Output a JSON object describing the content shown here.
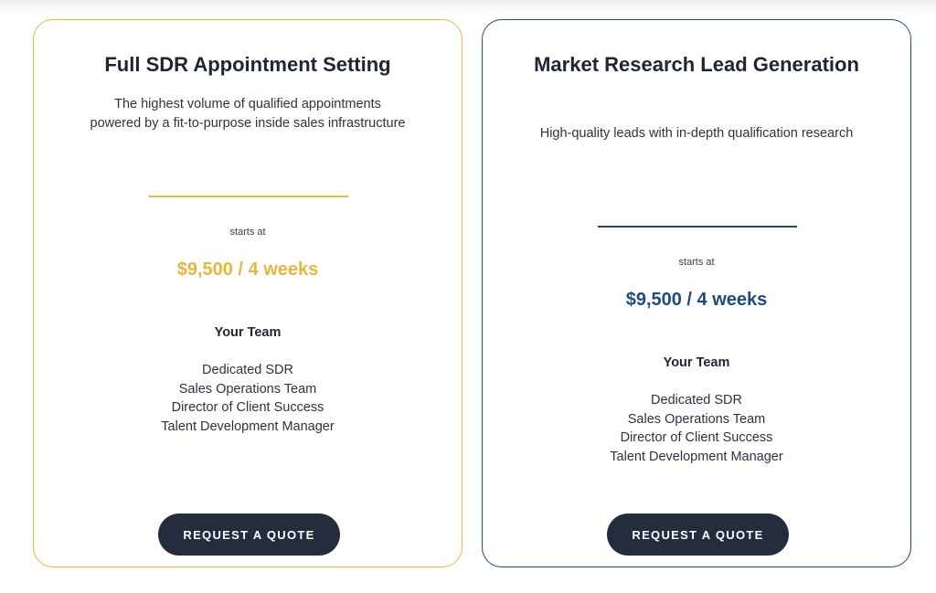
{
  "cards": [
    {
      "title": "Full SDR Appointment Setting",
      "description": "The highest volume of qualified appointments powered by a fit-to-purpose inside sales infrastructure",
      "starts_at_label": "starts at",
      "price": "$9,500 / 4 weeks",
      "team_heading": "Your Team",
      "team": [
        "Dedicated SDR",
        "Sales Operations Team",
        "Director of Client Success",
        "Talent Development Manager"
      ],
      "button_label": "REQUEST A QUOTE",
      "accent_color": "#e8bb3e"
    },
    {
      "title": "Market Research Lead Generation",
      "description": "High-quality leads with in-depth qualification research",
      "starts_at_label": "starts at",
      "price": "$9,500 / 4 weeks",
      "team_heading": "Your Team",
      "team": [
        "Dedicated SDR",
        "Sales Operations Team",
        "Director of Client Success",
        "Talent Development Manager"
      ],
      "button_label": "REQUEST A QUOTE",
      "accent_color": "#1f4b80"
    }
  ]
}
